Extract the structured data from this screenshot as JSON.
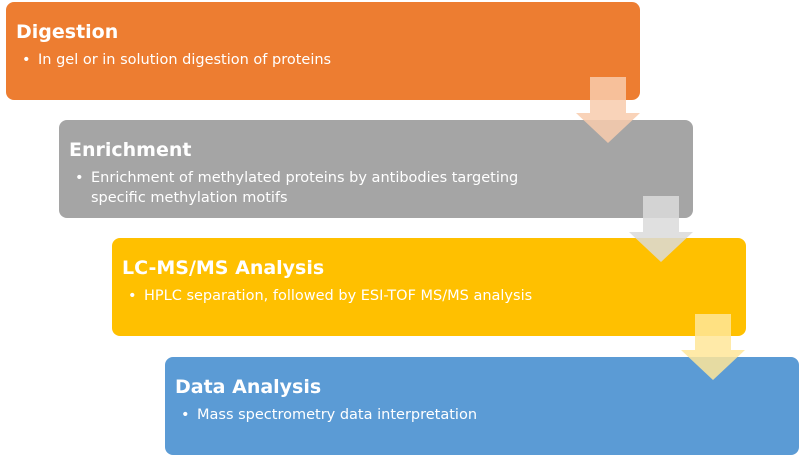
{
  "steps": [
    {
      "title": "Digestion",
      "bullet": "In gel or in solution digestion of proteins",
      "color": "#ED7D31"
    },
    {
      "title": "Enrichment",
      "bullet": "Enrichment of methylated proteins by antibodies targeting specific methylation motifs",
      "color": "#A5A5A5"
    },
    {
      "title": "LC-MS/MS Analysis",
      "bullet": "HPLC separation, followed by ESI-TOF MS/MS analysis",
      "color": "#FFC000"
    },
    {
      "title": "Data Analysis",
      "bullet": "Mass spectrometry data interpretation",
      "color": "#5B9BD5"
    }
  ],
  "arrow_colors": [
    "#F8CBAD",
    "#DBDBDB",
    "#FFE699"
  ]
}
